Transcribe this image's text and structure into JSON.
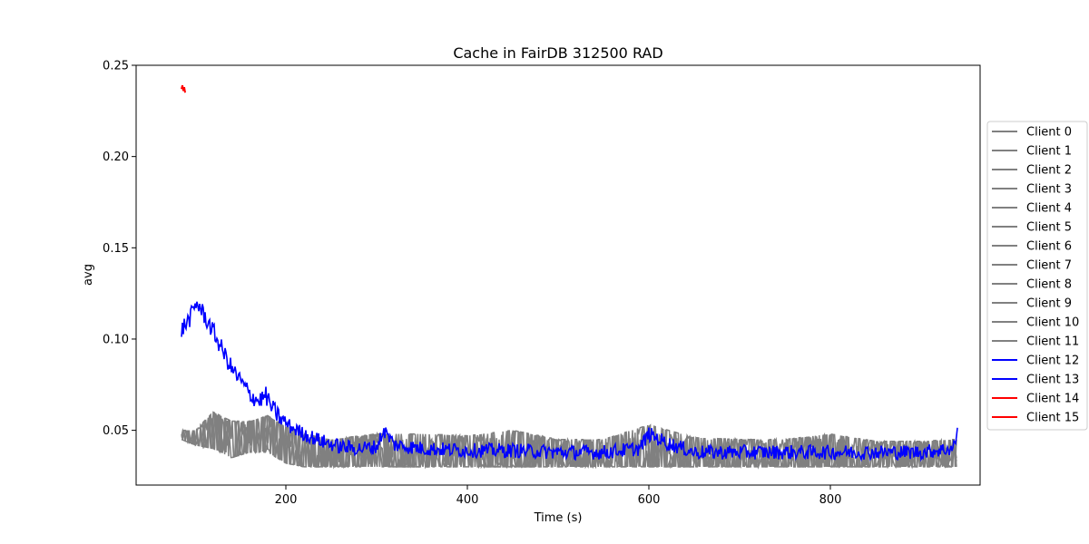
{
  "chart_data": {
    "type": "line",
    "title": "Cache in  FairDB 312500 RAD",
    "xlabel": "Time (s)",
    "ylabel": "avg",
    "xlim": [
      35,
      965
    ],
    "ylim": [
      0.02,
      0.25
    ],
    "xticks": [
      200,
      400,
      600,
      800
    ],
    "xtick_labels": [
      "200",
      "400",
      "600",
      "800"
    ],
    "yticks": [
      0.05,
      0.1,
      0.15,
      0.2,
      0.25
    ],
    "ytick_labels": [
      "0.05",
      "0.10",
      "0.15",
      "0.20",
      "0.25"
    ],
    "grid": false,
    "legend_position": "right",
    "colors": {
      "gray": "#808080",
      "blue": "#0000ff",
      "red": "#ff0000"
    },
    "series": [
      {
        "name": "Client 0",
        "color": "#808080"
      },
      {
        "name": "Client 1",
        "color": "#808080"
      },
      {
        "name": "Client 2",
        "color": "#808080"
      },
      {
        "name": "Client 3",
        "color": "#808080"
      },
      {
        "name": "Client 4",
        "color": "#808080"
      },
      {
        "name": "Client 5",
        "color": "#808080"
      },
      {
        "name": "Client 6",
        "color": "#808080"
      },
      {
        "name": "Client 7",
        "color": "#808080"
      },
      {
        "name": "Client 8",
        "color": "#808080"
      },
      {
        "name": "Client 9",
        "color": "#808080"
      },
      {
        "name": "Client 10",
        "color": "#808080"
      },
      {
        "name": "Client 11",
        "color": "#808080"
      },
      {
        "name": "Client 12",
        "color": "#0000ff",
        "x": [
          85,
          95,
          102,
          110,
          120,
          130,
          140,
          150,
          160,
          170,
          178,
          185,
          195,
          205,
          220,
          240,
          260,
          280,
          300,
          308,
          320,
          350,
          400,
          450,
          500,
          550,
          590,
          600,
          620,
          650,
          700,
          750,
          800,
          850,
          900,
          935,
          940
        ],
        "y": [
          0.105,
          0.112,
          0.12,
          0.113,
          0.104,
          0.094,
          0.084,
          0.077,
          0.07,
          0.066,
          0.069,
          0.062,
          0.056,
          0.052,
          0.048,
          0.044,
          0.041,
          0.04,
          0.041,
          0.05,
          0.042,
          0.04,
          0.039,
          0.039,
          0.038,
          0.038,
          0.04,
          0.048,
          0.043,
          0.038,
          0.038,
          0.038,
          0.038,
          0.038,
          0.038,
          0.04,
          0.048
        ]
      },
      {
        "name": "Client 13",
        "color": "#0000ff"
      },
      {
        "name": "Client 14",
        "color": "#ff0000",
        "x": [
          85,
          86,
          87,
          88,
          89
        ],
        "y": [
          0.237,
          0.239,
          0.236,
          0.238,
          0.235
        ]
      },
      {
        "name": "Client 15",
        "color": "#ff0000"
      }
    ],
    "gray_band": {
      "x": [
        85,
        100,
        120,
        140,
        160,
        180,
        200,
        220,
        250,
        300,
        350,
        400,
        450,
        500,
        550,
        600,
        650,
        700,
        750,
        800,
        850,
        900,
        940
      ],
      "upper": [
        0.05,
        0.05,
        0.06,
        0.055,
        0.055,
        0.058,
        0.052,
        0.048,
        0.045,
        0.048,
        0.048,
        0.047,
        0.05,
        0.045,
        0.045,
        0.053,
        0.046,
        0.045,
        0.045,
        0.048,
        0.044,
        0.044,
        0.045
      ],
      "lower": [
        0.045,
        0.042,
        0.04,
        0.035,
        0.038,
        0.038,
        0.032,
        0.03,
        0.03,
        0.03,
        0.03,
        0.03,
        0.03,
        0.03,
        0.03,
        0.03,
        0.03,
        0.03,
        0.03,
        0.03,
        0.03,
        0.03,
        0.03
      ]
    }
  }
}
